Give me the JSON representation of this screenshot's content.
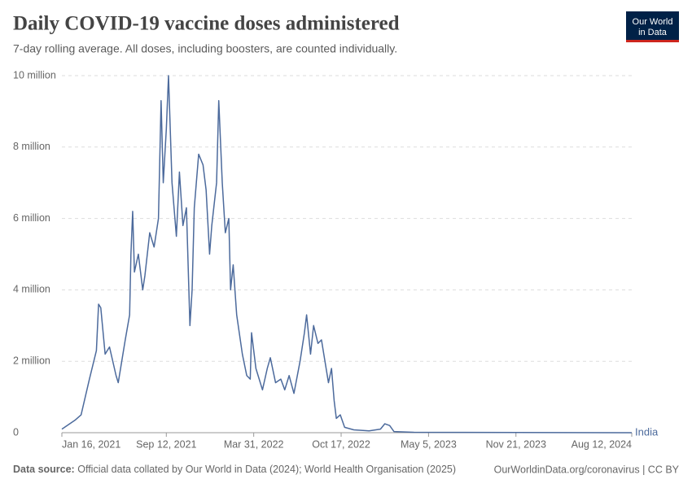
{
  "chart_data": {
    "type": "line",
    "title": "Daily COVID-19 vaccine doses administered",
    "subtitle": "7-day rolling average. All doses, including boosters, are counted individually.",
    "logo": [
      "Our World",
      "in Data"
    ],
    "source": {
      "label": "Data source:",
      "text": "Official data collated by Our World in Data (2024); World Health Organisation (2025)"
    },
    "url": "OurWorldinData.org/coronavirus | CC BY",
    "grid": true,
    "xlim": [
      "2021-01-16",
      "2024-08-12"
    ],
    "xticks": [
      {
        "value": "2021-01-16",
        "label": "Jan 16, 2021"
      },
      {
        "value": "2021-09-12",
        "label": "Sep 12, 2021"
      },
      {
        "value": "2022-03-31",
        "label": "Mar 31, 2022"
      },
      {
        "value": "2022-10-17",
        "label": "Oct 17, 2022"
      },
      {
        "value": "2023-05-05",
        "label": "May 5, 2023"
      },
      {
        "value": "2023-11-21",
        "label": "Nov 21, 2023"
      },
      {
        "value": "2024-08-12",
        "label": "Aug 12, 2024"
      }
    ],
    "ylim": [
      0,
      10000000
    ],
    "yticks": [
      0,
      {
        "value": 2000000,
        "label": "2 million"
      },
      {
        "value": 4000000,
        "label": "4 million"
      },
      {
        "value": 6000000,
        "label": "6 million"
      },
      {
        "value": 8000000,
        "label": "8 million"
      },
      {
        "value": 10000000,
        "label": "10 million"
      }
    ],
    "series": [
      {
        "name": "India",
        "color": "#4c6a9c",
        "x": [
          "2021-01-16",
          "2021-02-15",
          "2021-03-01",
          "2021-03-20",
          "2021-04-05",
          "2021-04-10",
          "2021-04-15",
          "2021-04-25",
          "2021-05-05",
          "2021-05-20",
          "2021-05-25",
          "2021-06-10",
          "2021-06-20",
          "2021-06-23",
          "2021-06-27",
          "2021-07-01",
          "2021-07-10",
          "2021-07-20",
          "2021-07-25",
          "2021-08-05",
          "2021-08-15",
          "2021-08-25",
          "2021-08-31",
          "2021-09-05",
          "2021-09-12",
          "2021-09-17",
          "2021-09-25",
          "2021-10-05",
          "2021-10-12",
          "2021-10-20",
          "2021-10-28",
          "2021-11-05",
          "2021-11-10",
          "2021-11-15",
          "2021-11-25",
          "2021-12-05",
          "2021-12-12",
          "2021-12-20",
          "2021-12-25",
          "2022-01-05",
          "2022-01-10",
          "2022-01-18",
          "2022-01-25",
          "2022-02-02",
          "2022-02-06",
          "2022-02-12",
          "2022-02-20",
          "2022-03-05",
          "2022-03-15",
          "2022-03-23",
          "2022-03-26",
          "2022-04-05",
          "2022-04-20",
          "2022-05-01",
          "2022-05-08",
          "2022-05-20",
          "2022-06-01",
          "2022-06-10",
          "2022-06-20",
          "2022-07-01",
          "2022-07-15",
          "2022-07-25",
          "2022-07-30",
          "2022-08-08",
          "2022-08-15",
          "2022-08-25",
          "2022-09-02",
          "2022-09-10",
          "2022-09-18",
          "2022-09-25",
          "2022-10-01",
          "2022-10-06",
          "2022-10-15",
          "2022-10-25",
          "2022-11-15",
          "2022-12-20",
          "2023-01-15",
          "2023-01-25",
          "2023-02-05",
          "2023-02-15",
          "2023-04-01",
          "2024-08-12"
        ],
        "values": [
          100000,
          350000,
          500000,
          1500000,
          2300000,
          3600000,
          3500000,
          2200000,
          2400000,
          1600000,
          1400000,
          2600000,
          3300000,
          5000000,
          6200000,
          4500000,
          5000000,
          4000000,
          4400000,
          5600000,
          5200000,
          6000000,
          9300000,
          7000000,
          8500000,
          10000000,
          7000000,
          5500000,
          7300000,
          5800000,
          6300000,
          3000000,
          4000000,
          6300000,
          7800000,
          7500000,
          6800000,
          5000000,
          5800000,
          7000000,
          9300000,
          7000000,
          5600000,
          6000000,
          4000000,
          4700000,
          3300000,
          2200000,
          1600000,
          1500000,
          2800000,
          1800000,
          1200000,
          1800000,
          2100000,
          1400000,
          1500000,
          1200000,
          1600000,
          1100000,
          2000000,
          2800000,
          3300000,
          2200000,
          3000000,
          2500000,
          2600000,
          2000000,
          1400000,
          1800000,
          900000,
          400000,
          500000,
          150000,
          80000,
          50000,
          100000,
          250000,
          200000,
          30000,
          10000,
          0
        ]
      }
    ]
  }
}
